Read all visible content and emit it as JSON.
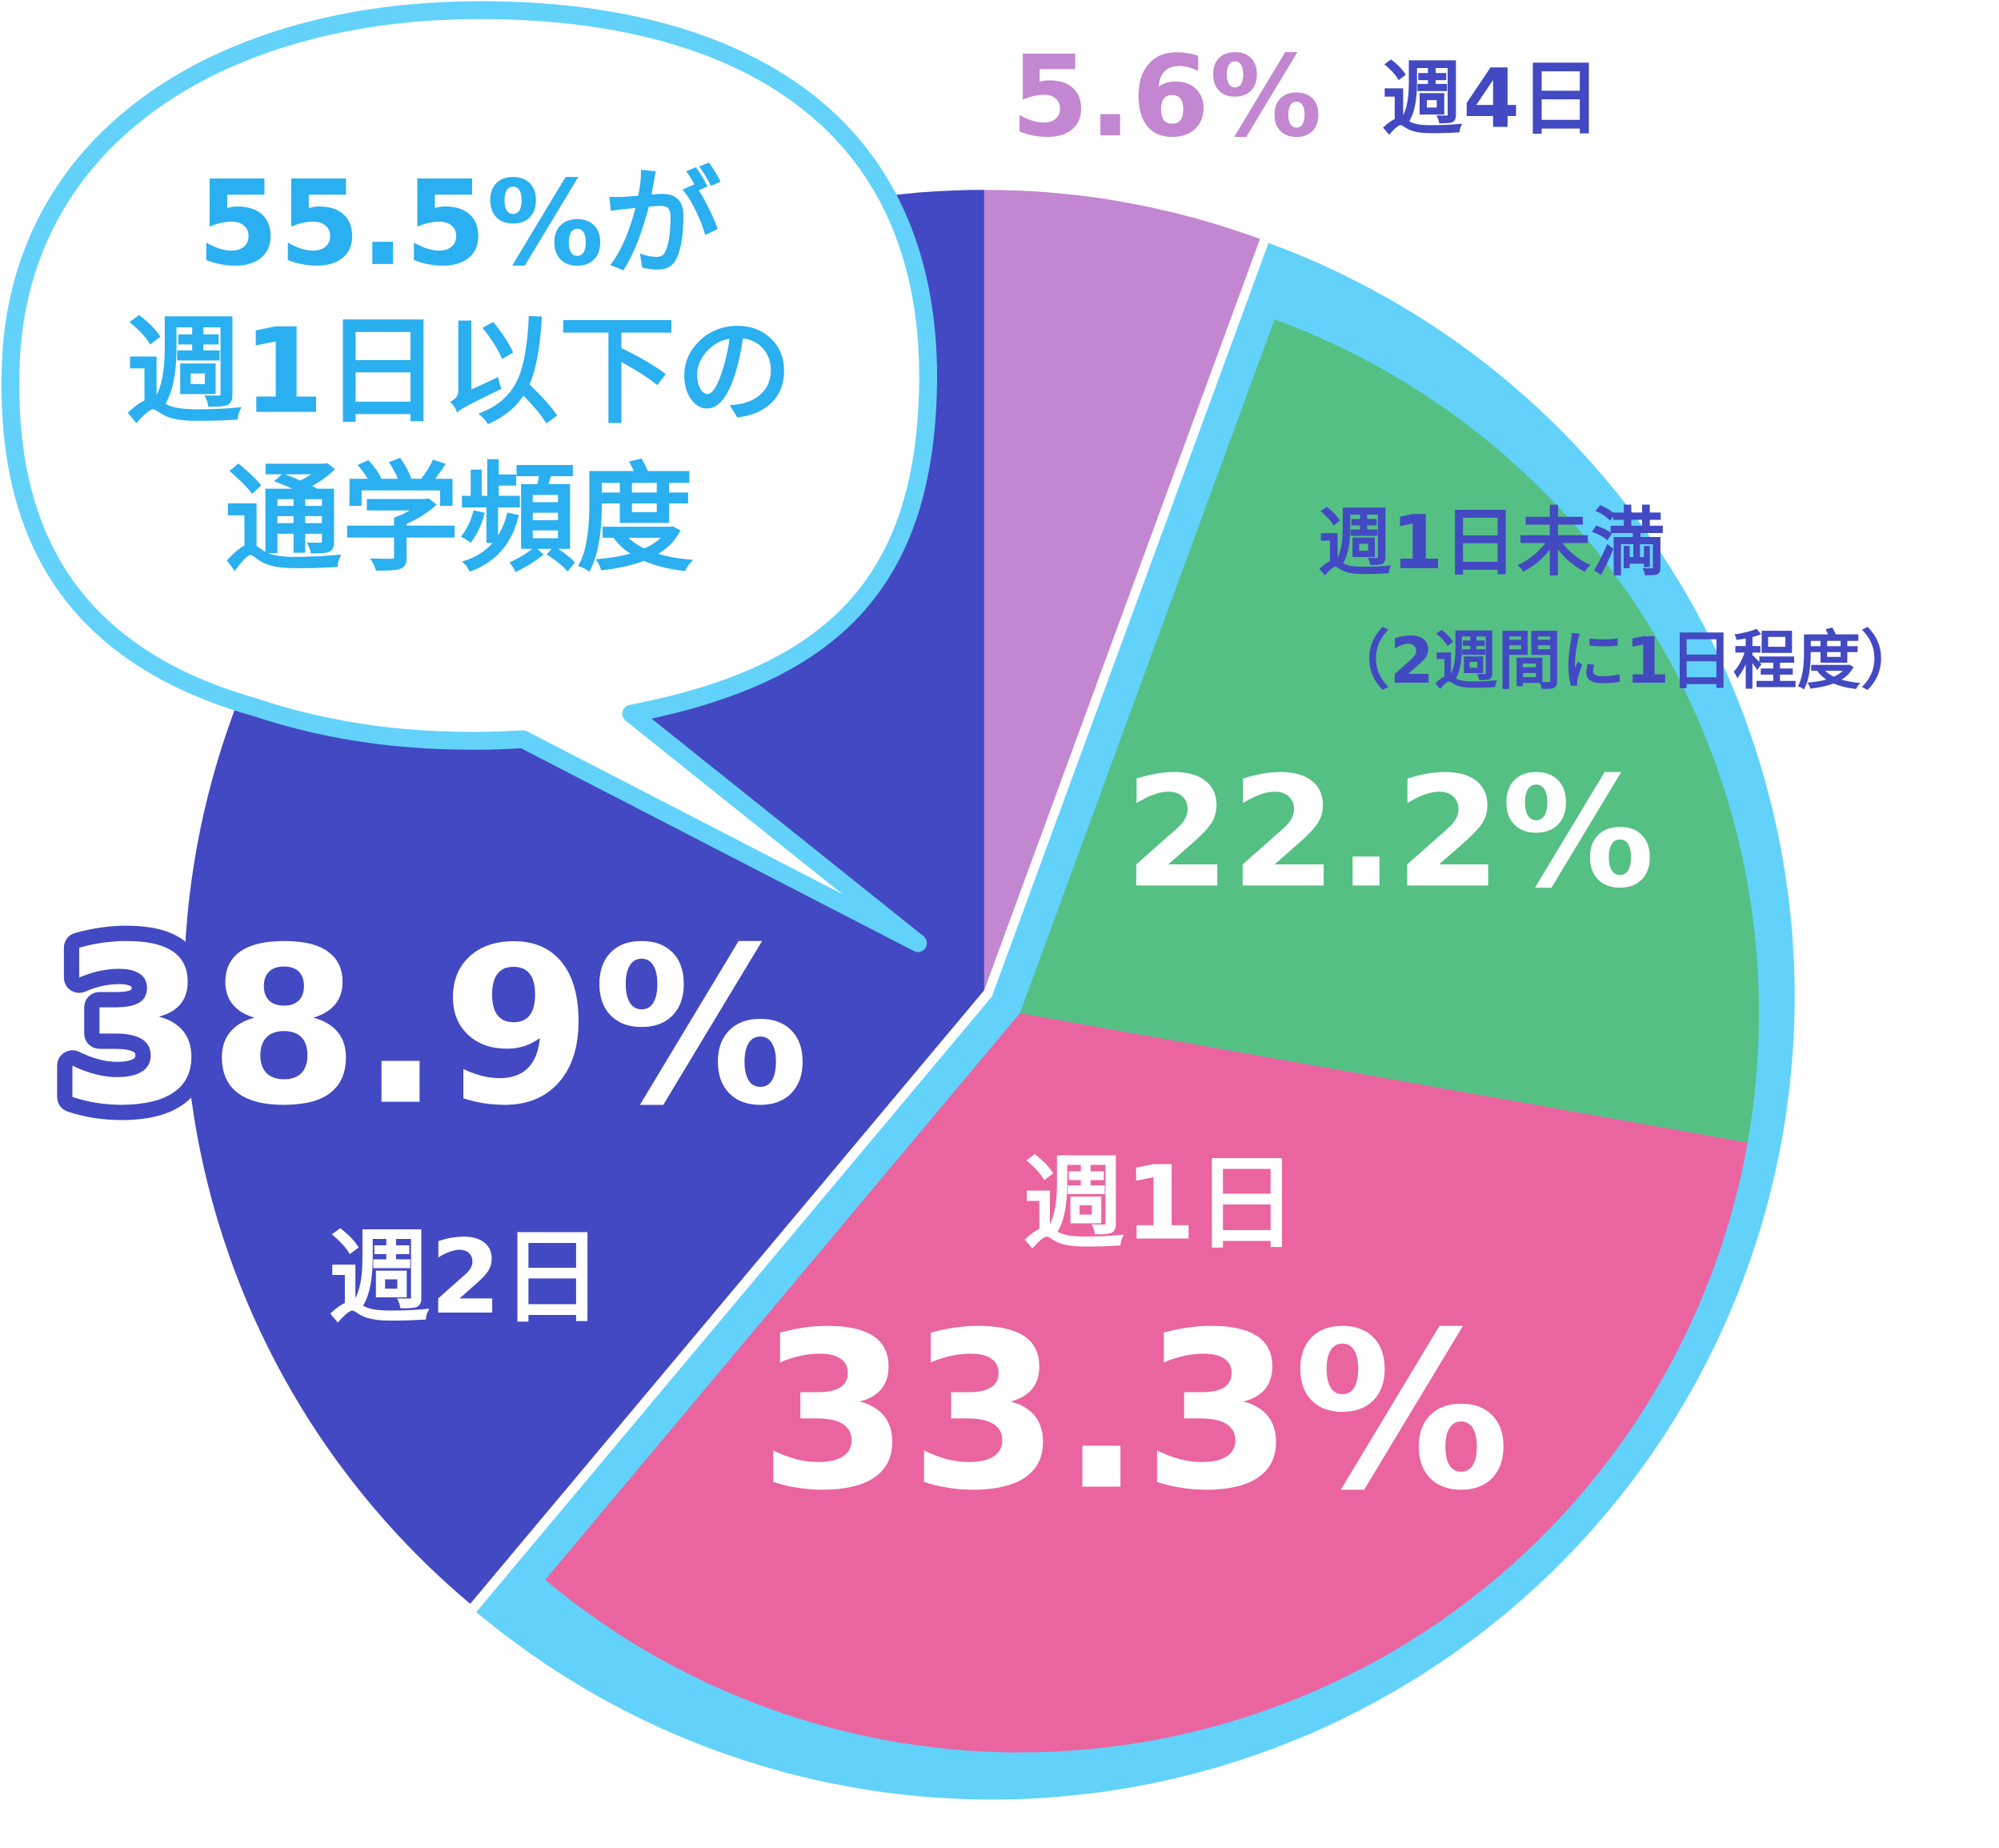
{
  "chart_data": {
    "type": "pie",
    "categories": [
      "週4日",
      "週1日未満",
      "週1日",
      "週2日"
    ],
    "values": [
      5.6,
      22.2,
      33.3,
      38.9
    ],
    "value_labels": [
      "5.6%",
      "22.2%",
      "33.3%",
      "38.9%"
    ],
    "colors": [
      "#c387d1",
      "#55c083",
      "#ea64a0",
      "#4249c2"
    ],
    "highlight_color": "#62d2fb",
    "annotations": [
      "（2週間に1日程度）"
    ],
    "callout": [
      "55.5%が",
      "週1日以下の",
      "通学頻度"
    ]
  }
}
